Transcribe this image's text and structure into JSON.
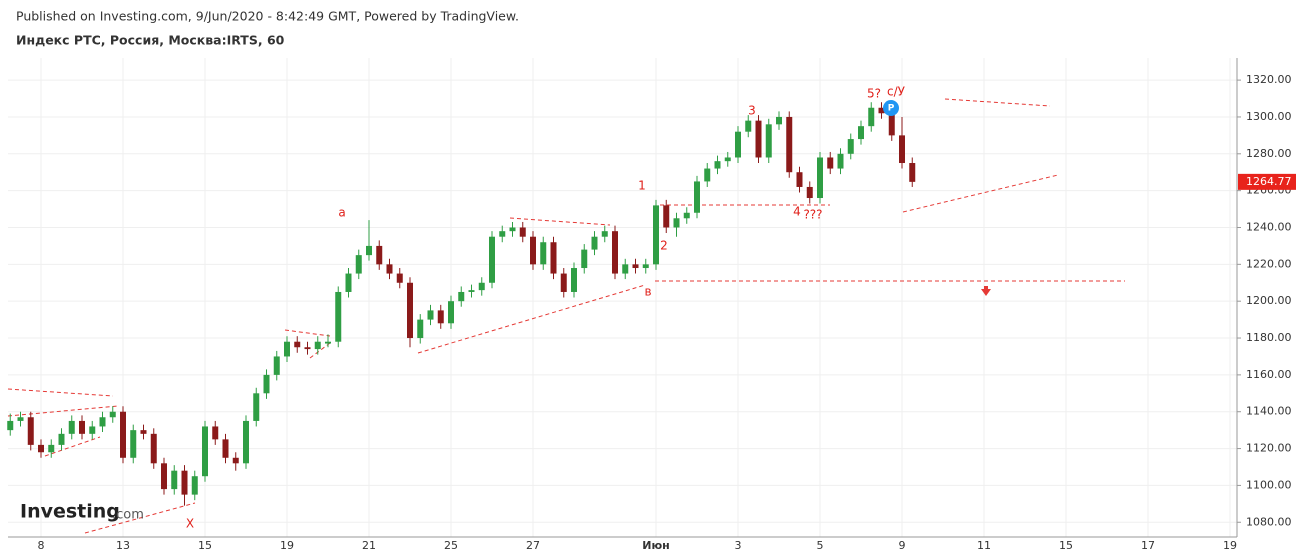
{
  "header": {
    "published": "Published on Investing.com, 9/Jun/2020 - 8:42:49 GMT, Powered by TradingView.",
    "symbol": "Индекс РТС, Россия, Москва:IRTS, 60",
    "logo": "Investing",
    "logo_suffix": ".com"
  },
  "chart_data": {
    "type": "candlestick",
    "categories": [
      null,
      null,
      null,
      "8",
      null,
      null,
      null,
      null,
      null,
      null,
      null,
      "13",
      null,
      null,
      null,
      null,
      null,
      null,
      null,
      "15",
      null,
      null,
      null,
      null,
      null,
      null,
      null,
      "19",
      null,
      null,
      null,
      null,
      null,
      null,
      null,
      "21",
      null,
      null,
      null,
      null,
      null,
      null,
      null,
      "25",
      null,
      null,
      null,
      null,
      null,
      null,
      null,
      "27",
      null,
      null,
      null,
      null,
      null,
      null,
      null,
      null,
      null,
      null,
      null,
      "Июн",
      null,
      null,
      null,
      null,
      null,
      null,
      null,
      "3",
      null,
      null,
      null,
      null,
      null,
      null,
      null,
      "5",
      null,
      null,
      null,
      null,
      null,
      null,
      null,
      "9",
      null,
      null,
      null,
      null,
      null,
      null,
      null,
      "11",
      null,
      null,
      null,
      null,
      null,
      null,
      null,
      "15",
      null,
      null,
      null,
      null,
      null,
      null,
      null,
      "17",
      null,
      null,
      null,
      null,
      null,
      null,
      null,
      "19"
    ],
    "open": [
      1130,
      1135,
      1137,
      1122,
      1118,
      1122,
      1128,
      1135,
      1128,
      1132,
      1137,
      1140,
      1115,
      1130,
      1128,
      1112,
      1098,
      1108,
      1095,
      1105,
      1132,
      1125,
      1115,
      1112,
      1135,
      1150,
      1160,
      1170,
      1178,
      1175,
      1174,
      1177,
      1178,
      1205,
      1215,
      1225,
      1230,
      1220,
      1215,
      1210,
      1180,
      1190,
      1195,
      1188,
      1200,
      1205,
      1206,
      1210,
      1235,
      1238,
      1240,
      1235,
      1220,
      1232,
      1215,
      1205,
      1218,
      1228,
      1235,
      1238,
      1215,
      1220,
      1218,
      1220,
      1252,
      1240,
      1245,
      1248,
      1265,
      1272,
      1276,
      1278,
      1292,
      1298,
      1278,
      1296,
      1300,
      1270,
      1262,
      1256,
      1278,
      1272,
      1280,
      1288,
      1295,
      1305,
      1302,
      1290,
      1275,
      null,
      null,
      null,
      null,
      null,
      null,
      null,
      null,
      null,
      null,
      null,
      null,
      null,
      null,
      null,
      null,
      null,
      null,
      null,
      null,
      null,
      null,
      null,
      null,
      null,
      null,
      null,
      null,
      null,
      null,
      null
    ],
    "high": [
      1139,
      1140,
      1140,
      1125,
      1125,
      1131,
      1138,
      1138,
      1135,
      1140,
      1143,
      1143,
      1133,
      1133,
      1131,
      1115,
      1111,
      1111,
      1108,
      1135,
      1135,
      1128,
      1118,
      1138,
      1153,
      1163,
      1173,
      1181,
      1181,
      1178,
      1181,
      1182,
      1208,
      1218,
      1228,
      1244,
      1233,
      1223,
      1218,
      1213,
      1193,
      1198,
      1198,
      1203,
      1208,
      1209,
      1213,
      1238,
      1241,
      1243,
      1243,
      1238,
      1235,
      1235,
      1218,
      1221,
      1231,
      1238,
      1241,
      1241,
      1223,
      1223,
      1223,
      1255,
      1255,
      1248,
      1251,
      1268,
      1275,
      1279,
      1281,
      1295,
      1301,
      1301,
      1299,
      1303,
      1303,
      1273,
      1265,
      1281,
      1281,
      1283,
      1291,
      1298,
      1308,
      1308,
      1305,
      1300,
      1278,
      null,
      null,
      null,
      null,
      null,
      null,
      null,
      null,
      null,
      null,
      null,
      null,
      null,
      null,
      null,
      null,
      null,
      null,
      null,
      null,
      null,
      null,
      null,
      null,
      null,
      null,
      null,
      null,
      null,
      null,
      null
    ],
    "low": [
      1127,
      1132,
      1119,
      1115,
      1115,
      1119,
      1125,
      1125,
      1125,
      1129,
      1134,
      1112,
      1112,
      1125,
      1109,
      1095,
      1095,
      1089,
      1092,
      1102,
      1122,
      1112,
      1108,
      1109,
      1132,
      1147,
      1157,
      1167,
      1172,
      1171,
      1171,
      1175,
      1175,
      1202,
      1212,
      1222,
      1217,
      1212,
      1207,
      1175,
      1177,
      1187,
      1185,
      1185,
      1197,
      1202,
      1203,
      1207,
      1232,
      1235,
      1232,
      1217,
      1217,
      1212,
      1202,
      1202,
      1215,
      1225,
      1232,
      1212,
      1212,
      1215,
      1215,
      1217,
      1237,
      1235,
      1242,
      1245,
      1262,
      1269,
      1273,
      1275,
      1289,
      1275,
      1275,
      1293,
      1267,
      1259,
      1253,
      1253,
      1269,
      1269,
      1277,
      1285,
      1292,
      1299,
      1287,
      1272,
      1262,
      null,
      null,
      null,
      null,
      null,
      null,
      null,
      null,
      null,
      null,
      null,
      null,
      null,
      null,
      null,
      null,
      null,
      null,
      null,
      null,
      null,
      null,
      null,
      null,
      null,
      null,
      null,
      null,
      null,
      null,
      null
    ],
    "close": [
      1135,
      1137,
      1122,
      1118,
      1122,
      1128,
      1135,
      1128,
      1132,
      1137,
      1140,
      1115,
      1130,
      1128,
      1112,
      1098,
      1108,
      1095,
      1105,
      1132,
      1125,
      1115,
      1112,
      1135,
      1150,
      1160,
      1170,
      1178,
      1175,
      1174,
      1178,
      1178,
      1205,
      1215,
      1225,
      1230,
      1220,
      1215,
      1210,
      1180,
      1190,
      1195,
      1188,
      1200,
      1205,
      1206,
      1210,
      1235,
      1238,
      1240,
      1235,
      1220,
      1232,
      1215,
      1205,
      1218,
      1228,
      1235,
      1238,
      1215,
      1220,
      1218,
      1220,
      1252,
      1240,
      1245,
      1248,
      1265,
      1272,
      1276,
      1278,
      1292,
      1298,
      1278,
      1296,
      1300,
      1270,
      1262,
      1256,
      1278,
      1272,
      1280,
      1288,
      1295,
      1305,
      1302,
      1290,
      1275,
      1264.77,
      null,
      null,
      null,
      null,
      null,
      null,
      null,
      null,
      null,
      null,
      null,
      null,
      null,
      null,
      null,
      null,
      null,
      null,
      null,
      null,
      null,
      null,
      null,
      null,
      null,
      null,
      null,
      null,
      null,
      null,
      null
    ],
    "up_color": "#2f9e44",
    "down_color": "#8b1a1a",
    "ylim": [
      1072,
      1332
    ],
    "yticks": [
      {
        "value": 1080,
        "label": "1080.00"
      },
      {
        "value": 1100,
        "label": "1100.00"
      },
      {
        "value": 1120,
        "label": "1120.00"
      },
      {
        "value": 1140,
        "label": "1140.00"
      },
      {
        "value": 1160,
        "label": "1160.00"
      },
      {
        "value": 1180,
        "label": "1180.00"
      },
      {
        "value": 1200,
        "label": "1200.00"
      },
      {
        "value": 1220,
        "label": "1220.00"
      },
      {
        "value": 1240,
        "label": "1240.00"
      },
      {
        "value": 1260,
        "label": "1260.00"
      },
      {
        "value": 1280,
        "label": "1280.00"
      },
      {
        "value": 1300,
        "label": "1300.00"
      },
      {
        "value": 1320,
        "label": "1320.00"
      }
    ],
    "grid": true,
    "annotations": [
      "a",
      "1",
      "2",
      "3",
      "4",
      "???",
      "5?",
      "с/У",
      "в",
      "X"
    ],
    "marker": "P"
  }
}
